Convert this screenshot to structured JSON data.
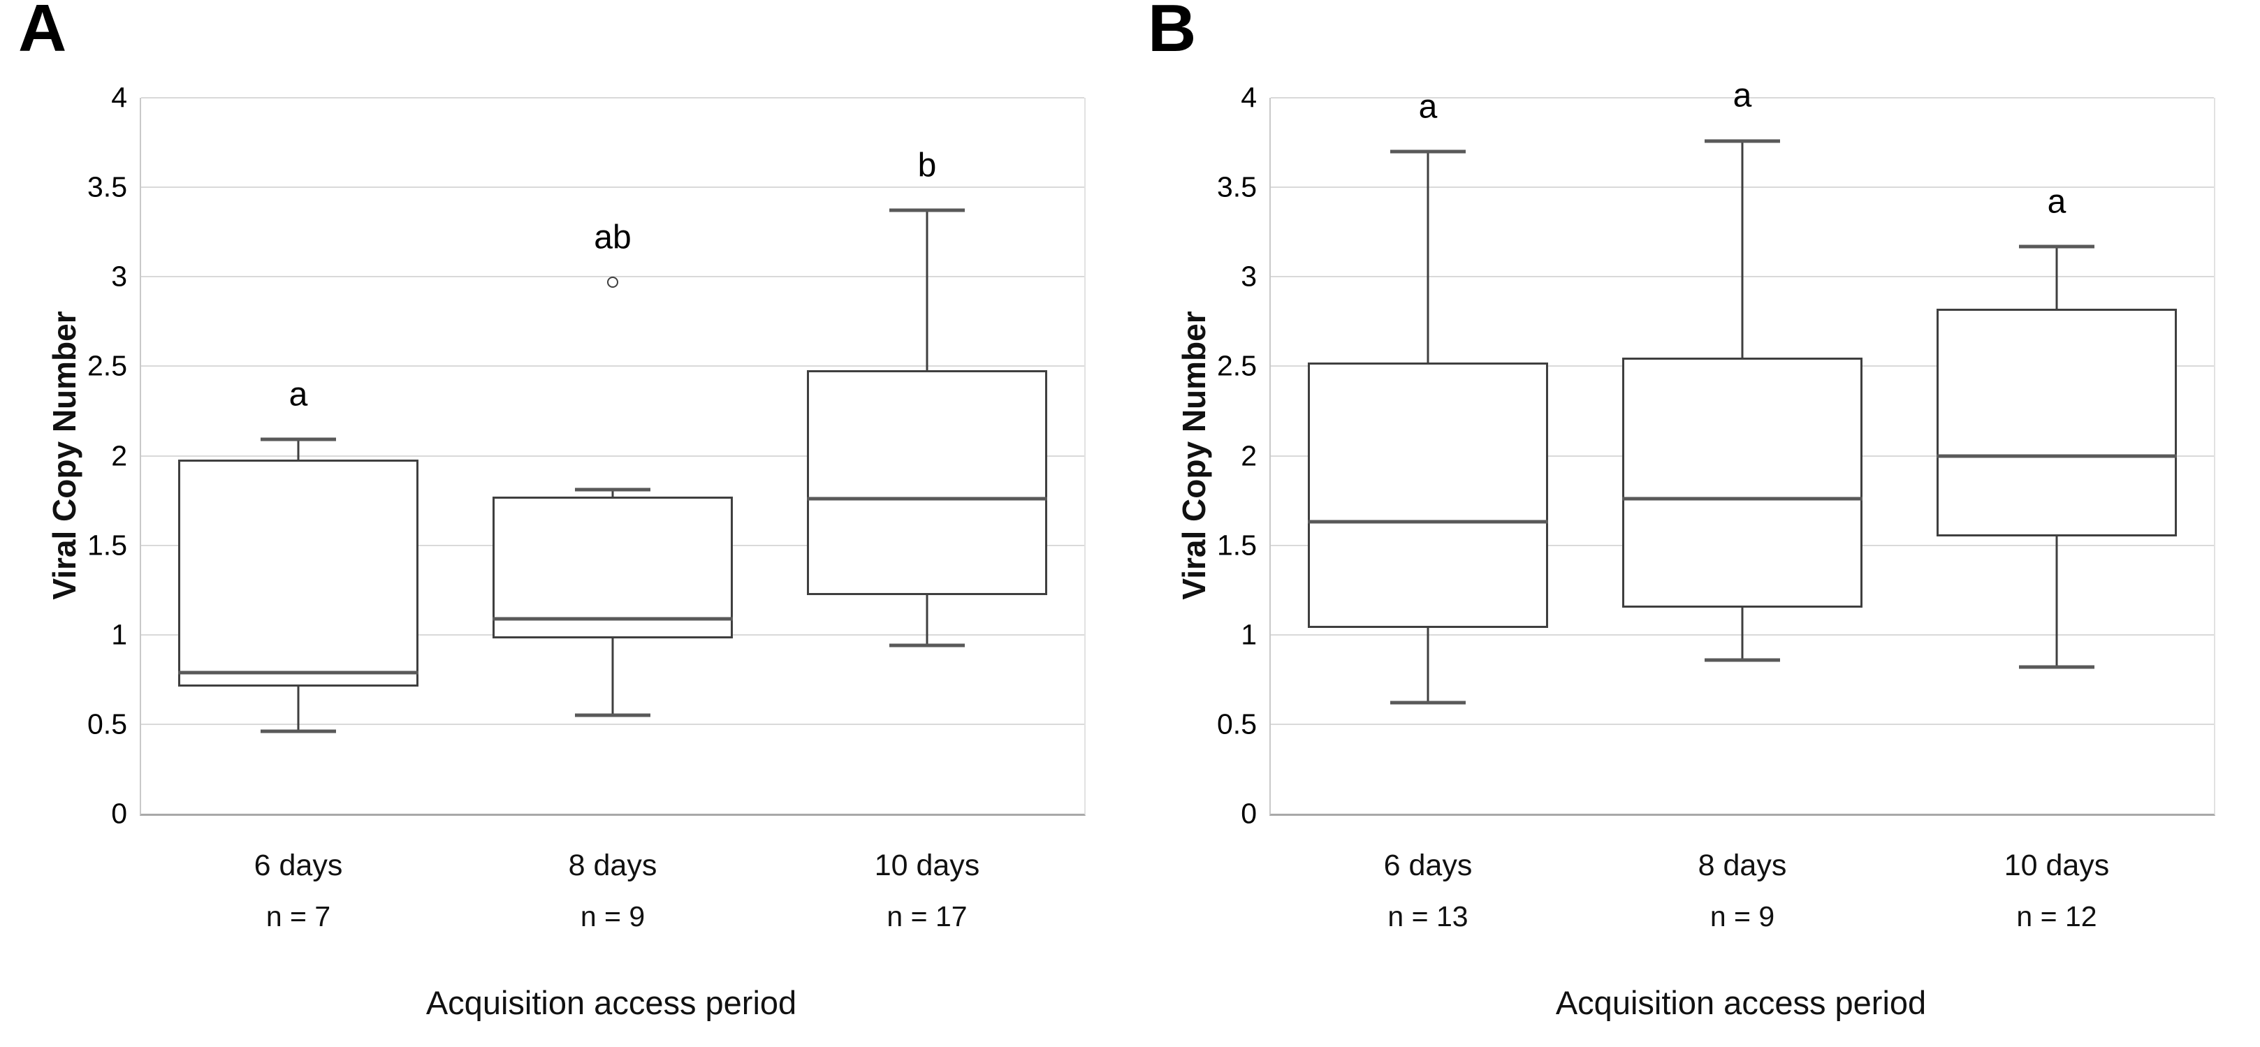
{
  "figure": {
    "y_axis_label": "Viral Copy Number",
    "x_axis_label": "Acquisition access period"
  },
  "colors": {
    "gridline": "#d9d9d9",
    "box_border": "#3f3f3f",
    "median_and_caps": "#595959",
    "text": "#111111"
  },
  "chart_data": [
    {
      "type": "box",
      "panel": "A",
      "ylabel": "Viral Copy Number",
      "xlabel": "Acquisition access period",
      "ylim": [
        0,
        4
      ],
      "grid": true,
      "yticks": [
        "0",
        "0.5",
        "1",
        "1.5",
        "2",
        "2.5",
        "3",
        "3.5",
        "4"
      ],
      "categories": [
        "6 days",
        "8 days",
        "10 days"
      ],
      "n_labels": [
        "n = 7",
        "n = 9",
        "n = 17"
      ],
      "sig_letters": [
        "a",
        "ab",
        "b"
      ],
      "boxes": [
        {
          "whisker_low": 0.46,
          "q1": 0.71,
          "median": 0.79,
          "q3": 1.98,
          "whisker_high": 2.09,
          "outliers": []
        },
        {
          "whisker_low": 0.55,
          "q1": 0.98,
          "median": 1.09,
          "q3": 1.77,
          "whisker_high": 1.81,
          "outliers": [
            2.97
          ]
        },
        {
          "whisker_low": 0.94,
          "q1": 1.22,
          "median": 1.76,
          "q3": 2.48,
          "whisker_high": 3.37,
          "outliers": []
        }
      ]
    },
    {
      "type": "box",
      "panel": "B",
      "ylabel": "Viral Copy Number",
      "xlabel": "Acquisition access period",
      "ylim": [
        0,
        4
      ],
      "grid": true,
      "yticks": [
        "0",
        "0.5",
        "1",
        "1.5",
        "2",
        "2.5",
        "3",
        "3.5",
        "4"
      ],
      "categories": [
        "6 days",
        "8 days",
        "10 days"
      ],
      "n_labels": [
        "n = 13",
        "n = 9",
        "n = 12"
      ],
      "sig_letters": [
        "a",
        "a",
        "a"
      ],
      "boxes": [
        {
          "whisker_low": 0.62,
          "q1": 1.04,
          "median": 1.63,
          "q3": 2.52,
          "whisker_high": 3.7,
          "outliers": []
        },
        {
          "whisker_low": 0.86,
          "q1": 1.15,
          "median": 1.76,
          "q3": 2.55,
          "whisker_high": 3.76,
          "outliers": []
        },
        {
          "whisker_low": 0.82,
          "q1": 1.55,
          "median": 2.0,
          "q3": 2.82,
          "whisker_high": 3.17,
          "outliers": []
        }
      ]
    }
  ]
}
